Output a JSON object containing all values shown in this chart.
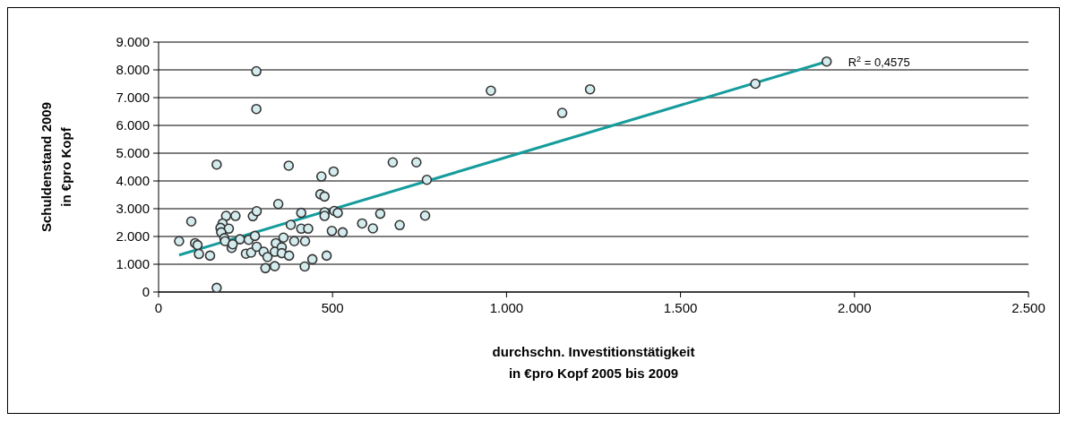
{
  "chart_data": {
    "type": "scatter",
    "xlabel": "durchschn. Investitionstätigkeit\nin €pro Kopf 2005 bis 2009",
    "ylabel": "Schuldenstand 2009\nin €pro Kopf",
    "xlim": [
      0,
      2500
    ],
    "xticks": [
      0,
      500,
      {
        "value": 1000,
        "label": "1.000"
      },
      {
        "value": 1500,
        "label": "1.500"
      },
      {
        "value": 2000,
        "label": "2.000"
      },
      {
        "value": 2500,
        "label": "2.500"
      }
    ],
    "ylim": [
      0,
      9000
    ],
    "yticks": [
      0,
      {
        "value": 1000,
        "label": "1.000"
      },
      {
        "value": 2000,
        "label": "2.000"
      },
      {
        "value": 3000,
        "label": "3.000"
      },
      {
        "value": 4000,
        "label": "4.000"
      },
      {
        "value": 5000,
        "label": "5.000"
      },
      {
        "value": 6000,
        "label": "6.000"
      },
      {
        "value": 7000,
        "label": "7.000"
      },
      {
        "value": 8000,
        "label": "8.000"
      },
      {
        "value": 9000,
        "label": "9.000"
      }
    ],
    "grid": "y",
    "legend": false,
    "marker": "circle",
    "series": [
      {
        "color": "#d4ecee",
        "x": [
          167,
          374,
          468,
          503,
          94,
          59,
          105,
          112,
          116,
          148,
          167,
          194,
          184,
          178,
          202,
          180,
          189,
          191,
          221,
          210,
          234,
          213,
          271,
          282,
          259,
          277,
          251,
          266,
          282,
          302,
          313,
          307,
          334,
          344,
          337,
          334,
          354,
          354,
          359,
          375,
          380,
          390,
          410,
          410,
          430,
          421,
          420,
          442,
          465,
          477,
          477,
          477,
          505,
          515,
          498,
          529,
          483,
          673,
          741,
          771,
          637,
          766,
          585,
          616,
          693,
          281,
          281,
          955,
          1160,
          1240,
          1715,
          1920
        ],
        "values": [
          4590,
          4550,
          4160,
          4340,
          2540,
          1830,
          1760,
          1690,
          1370,
          1310,
          150,
          2740,
          2470,
          2310,
          2280,
          2150,
          1940,
          1830,
          2740,
          1590,
          1900,
          1720,
          2730,
          2910,
          1880,
          2020,
          1380,
          1420,
          1630,
          1450,
          1260,
          860,
          930,
          3170,
          1760,
          1450,
          1610,
          1400,
          1960,
          1310,
          2420,
          1830,
          2850,
          2280,
          2280,
          1830,
          920,
          1180,
          3520,
          3440,
          2870,
          2740,
          2920,
          2850,
          2200,
          2150,
          1310,
          4670,
          4670,
          4040,
          2820,
          2750,
          2470,
          2290,
          2410,
          7950,
          6590,
          7250,
          6450,
          7300,
          7500,
          8300
        ]
      },
      {
        "type": "line",
        "color": "#169c9c",
        "marker": "none",
        "x": [
          59,
          1920
        ],
        "values": [
          1330,
          8300
        ]
      }
    ],
    "annotations": [
      {
        "text": "R$^{2}$ = 0,4575",
        "x": 1920,
        "y": 8300
      }
    ]
  }
}
